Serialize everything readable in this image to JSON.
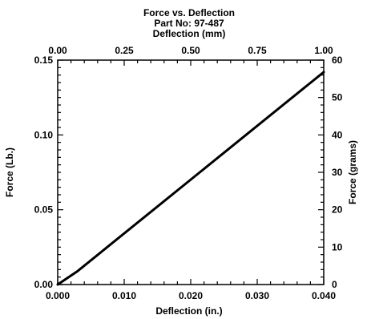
{
  "chart_data": {
    "type": "line",
    "title": "Force vs. Deflection",
    "subtitle": "Part No: 97-487",
    "xlabel": "Deflection (in.)",
    "ylabel": "Force (Lb.)",
    "x2label": "Deflection (mm)",
    "y2label": "Force (grams)",
    "xlim": [
      0.0,
      0.04
    ],
    "ylim": [
      0.0,
      0.15
    ],
    "x2lim": [
      0.0,
      1.0
    ],
    "y2lim": [
      0,
      60
    ],
    "xticks": [
      "0.000",
      "0.010",
      "0.020",
      "0.030",
      "0.040"
    ],
    "yticks": [
      "0.00",
      "0.05",
      "0.10",
      "0.15"
    ],
    "x2ticks": [
      "0.00",
      "0.25",
      "0.50",
      "0.75",
      "1.00"
    ],
    "y2ticks": [
      "0",
      "10",
      "20",
      "30",
      "40",
      "50",
      "60"
    ],
    "grid": false,
    "legend": "none",
    "series": [
      {
        "x": [
          0.0,
          0.003,
          0.04
        ],
        "y": [
          0.0,
          0.009,
          0.142
        ]
      }
    ]
  }
}
